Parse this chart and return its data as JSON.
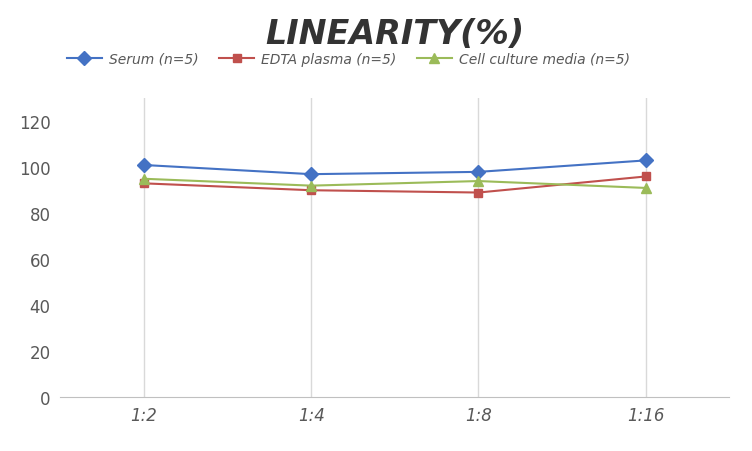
{
  "title": "LINEARITY(%)",
  "title_fontsize": 24,
  "title_fontstyle": "italic",
  "title_fontweight": "bold",
  "x_labels": [
    "1:2",
    "1:4",
    "1:8",
    "1:16"
  ],
  "x_positions": [
    0,
    1,
    2,
    3
  ],
  "series": [
    {
      "label": "Serum (n=5)",
      "color": "#4472C4",
      "marker": "D",
      "markersize": 7,
      "values": [
        101,
        97,
        98,
        103
      ]
    },
    {
      "label": "EDTA plasma (n=5)",
      "color": "#C0504D",
      "marker": "s",
      "markersize": 6,
      "values": [
        93,
        90,
        89,
        96
      ]
    },
    {
      "label": "Cell culture media (n=5)",
      "color": "#9BBB59",
      "marker": "^",
      "markersize": 7,
      "values": [
        95,
        92,
        94,
        91
      ]
    }
  ],
  "ylim": [
    0,
    130
  ],
  "yticks": [
    0,
    20,
    40,
    60,
    80,
    100,
    120
  ],
  "grid_color": "#d9d9d9",
  "background_color": "#ffffff",
  "legend_fontsize": 10,
  "tick_fontsize": 12,
  "axis_label_color": "#595959"
}
